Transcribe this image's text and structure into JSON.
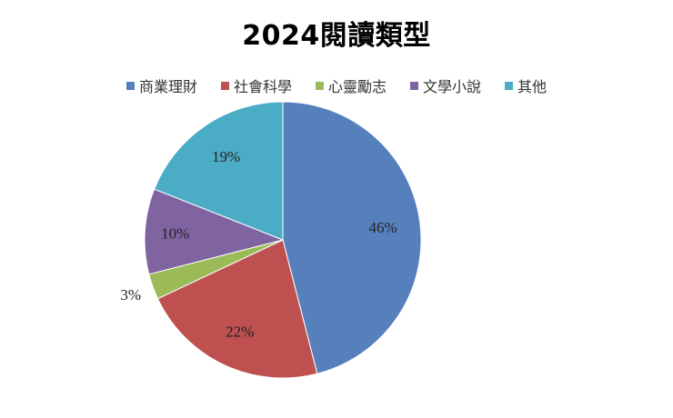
{
  "chart_data": {
    "type": "pie",
    "title": "2024閱讀類型",
    "legend_position": "top",
    "categories": [
      "商業理財",
      "社會科學",
      "心靈勵志",
      "文學小說",
      "其他"
    ],
    "values": [
      46,
      22,
      3,
      10,
      19
    ],
    "labels": [
      "46%",
      "22%",
      "3%",
      "10%",
      "19%"
    ],
    "colors": [
      "#5680BC",
      "#BE5050",
      "#9BBB59",
      "#8064A2",
      "#4BACC6"
    ]
  }
}
